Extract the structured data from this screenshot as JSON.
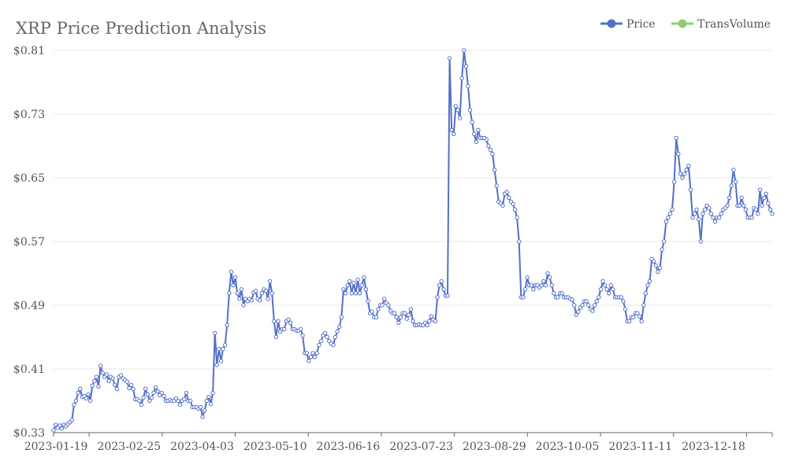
{
  "chart_data": {
    "type": "line",
    "title": "XRP Price Prediction Analysis",
    "xlabel": "",
    "ylabel": "",
    "ylim": [
      0.33,
      0.81
    ],
    "yticks": [
      "$0.33",
      "$0.41",
      "$0.49",
      "$0.57",
      "$0.65",
      "$0.73",
      "$0.81"
    ],
    "ytick_values": [
      0.33,
      0.41,
      0.49,
      0.57,
      0.65,
      0.73,
      0.81
    ],
    "x_start": "2023-01-01",
    "x_end": "2023-12-31",
    "xticks": [
      "2023-01-19",
      "2023-02-25",
      "2023-04-03",
      "2023-05-10",
      "2023-06-16",
      "2023-07-23",
      "2023-08-29",
      "2023-10-05",
      "2023-11-11",
      "2023-12-18"
    ],
    "legend": [
      {
        "name": "Price",
        "color": "#5470c6"
      },
      {
        "name": "TransVolume",
        "color": "#91cc75"
      }
    ],
    "series": [
      {
        "name": "Price",
        "color": "#5470c6",
        "values": [
          0.333,
          0.34,
          0.336,
          0.339,
          0.335,
          0.34,
          0.338,
          0.341,
          0.343,
          0.346,
          0.365,
          0.37,
          0.38,
          0.385,
          0.375,
          0.376,
          0.373,
          0.378,
          0.37,
          0.389,
          0.395,
          0.4,
          0.388,
          0.414,
          0.405,
          0.4,
          0.403,
          0.395,
          0.4,
          0.398,
          0.39,
          0.385,
          0.4,
          0.402,
          0.398,
          0.396,
          0.394,
          0.386,
          0.39,
          0.385,
          0.372,
          0.372,
          0.37,
          0.365,
          0.374,
          0.385,
          0.378,
          0.37,
          0.374,
          0.38,
          0.387,
          0.382,
          0.377,
          0.38,
          0.376,
          0.37,
          0.37,
          0.371,
          0.37,
          0.37,
          0.373,
          0.37,
          0.365,
          0.37,
          0.372,
          0.38,
          0.37,
          0.37,
          0.362,
          0.362,
          0.362,
          0.36,
          0.362,
          0.35,
          0.358,
          0.37,
          0.375,
          0.366,
          0.38,
          0.455,
          0.415,
          0.435,
          0.42,
          0.435,
          0.44,
          0.465,
          0.505,
          0.532,
          0.515,
          0.525,
          0.505,
          0.498,
          0.51,
          0.49,
          0.498,
          0.495,
          0.498,
          0.496,
          0.506,
          0.508,
          0.498,
          0.496,
          0.505,
          0.51,
          0.508,
          0.498,
          0.52,
          0.505,
          0.47,
          0.45,
          0.47,
          0.457,
          0.46,
          0.46,
          0.47,
          0.472,
          0.468,
          0.46,
          0.46,
          0.458,
          0.458,
          0.46,
          0.452,
          0.43,
          0.43,
          0.42,
          0.425,
          0.43,
          0.425,
          0.43,
          0.44,
          0.445,
          0.452,
          0.455,
          0.45,
          0.445,
          0.442,
          0.44,
          0.45,
          0.457,
          0.463,
          0.475,
          0.51,
          0.505,
          0.515,
          0.52,
          0.505,
          0.518,
          0.505,
          0.522,
          0.505,
          0.515,
          0.525,
          0.51,
          0.495,
          0.48,
          0.482,
          0.475,
          0.475,
          0.485,
          0.49,
          0.49,
          0.498,
          0.493,
          0.49,
          0.483,
          0.48,
          0.48,
          0.475,
          0.468,
          0.475,
          0.48,
          0.48,
          0.473,
          0.478,
          0.485,
          0.47,
          0.465,
          0.465,
          0.466,
          0.465,
          0.465,
          0.468,
          0.465,
          0.47,
          0.476,
          0.472,
          0.47,
          0.5,
          0.515,
          0.52,
          0.51,
          0.502,
          0.502,
          0.8,
          0.71,
          0.705,
          0.74,
          0.735,
          0.725,
          0.775,
          0.81,
          0.79,
          0.765,
          0.735,
          0.72,
          0.705,
          0.695,
          0.71,
          0.7,
          0.7,
          0.7,
          0.698,
          0.69,
          0.685,
          0.68,
          0.66,
          0.64,
          0.62,
          0.618,
          0.615,
          0.63,
          0.632,
          0.625,
          0.62,
          0.617,
          0.61,
          0.6,
          0.57,
          0.5,
          0.5,
          0.51,
          0.525,
          0.515,
          0.515,
          0.51,
          0.515,
          0.515,
          0.512,
          0.515,
          0.52,
          0.515,
          0.53,
          0.525,
          0.515,
          0.505,
          0.5,
          0.5,
          0.505,
          0.505,
          0.5,
          0.5,
          0.5,
          0.498,
          0.497,
          0.49,
          0.478,
          0.482,
          0.487,
          0.49,
          0.495,
          0.495,
          0.49,
          0.485,
          0.483,
          0.49,
          0.495,
          0.5,
          0.51,
          0.52,
          0.515,
          0.51,
          0.505,
          0.515,
          0.51,
          0.5,
          0.5,
          0.5,
          0.5,
          0.495,
          0.485,
          0.47,
          0.47,
          0.475,
          0.475,
          0.48,
          0.48,
          0.476,
          0.47,
          0.49,
          0.505,
          0.515,
          0.52,
          0.548,
          0.545,
          0.54,
          0.532,
          0.537,
          0.56,
          0.57,
          0.595,
          0.6,
          0.605,
          0.61,
          0.645,
          0.7,
          0.68,
          0.655,
          0.65,
          0.655,
          0.66,
          0.665,
          0.635,
          0.6,
          0.605,
          0.61,
          0.598,
          0.57,
          0.605,
          0.61,
          0.615,
          0.612,
          0.605,
          0.6,
          0.595,
          0.6,
          0.6,
          0.605,
          0.61,
          0.612,
          0.615,
          0.625,
          0.64,
          0.66,
          0.645,
          0.615,
          0.615,
          0.625,
          0.615,
          0.61,
          0.6,
          0.6,
          0.6,
          0.612,
          0.61,
          0.605,
          0.635,
          0.615,
          0.625,
          0.63,
          0.618,
          0.61,
          0.605
        ]
      }
    ]
  }
}
